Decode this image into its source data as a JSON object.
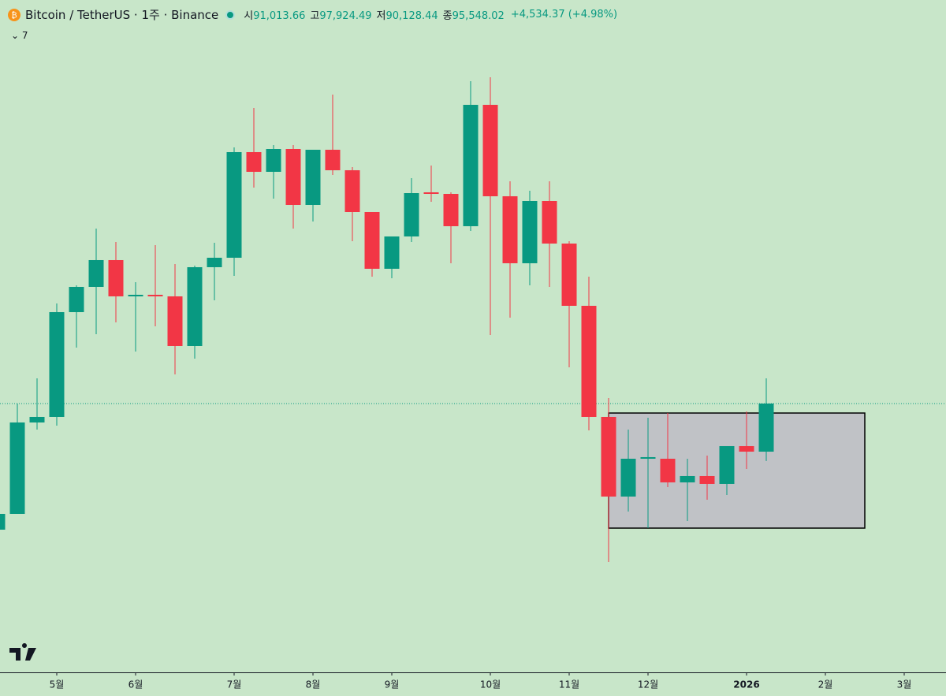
{
  "chart_data": {
    "type": "candlestick",
    "header": {
      "symbol": "Bitcoin / TetherUS · 1주 · Binance",
      "fields": [
        {
          "label": "시",
          "text": "91,013.66"
        },
        {
          "label": "고",
          "text": "97,924.49"
        },
        {
          "label": "저",
          "text": "90,128.44"
        },
        {
          "label": "종",
          "text": "95,548.02"
        }
      ],
      "change": "+4,534.37 (+4.98%)",
      "indicators": "7"
    },
    "x": [
      0,
      1,
      2,
      3,
      4,
      5,
      6,
      7,
      8,
      9,
      10,
      11,
      12,
      13,
      14,
      15,
      16,
      17,
      18,
      19,
      20,
      21,
      22,
      23,
      24,
      25,
      26,
      27,
      28,
      29,
      30,
      31,
      32,
      33,
      34,
      35,
      36,
      37,
      38,
      39
    ],
    "open": [
      83660,
      85146,
      93765,
      94285,
      104167,
      106545,
      109071,
      105653,
      105802,
      105653,
      100972,
      108402,
      109294,
      119250,
      117393,
      119547,
      114272,
      119473,
      117541,
      113603,
      108254,
      111300,
      115461,
      115312,
      112266,
      123708,
      115089,
      108774,
      114643,
      110631,
      104762,
      94285,
      86781,
      90347,
      90347,
      88118,
      88713,
      87970,
      91536,
      91013.66
    ],
    "high": [
      85295,
      95548,
      97926,
      104984,
      106693,
      112043,
      110780,
      106991,
      110483,
      108699,
      108551,
      110706,
      119696,
      123411,
      119919,
      119919,
      119473,
      124674,
      117838,
      113603,
      111300,
      116798,
      117987,
      115461,
      125937,
      126309,
      116501,
      115609,
      116501,
      110854,
      107511,
      96068,
      93096,
      94211,
      94657,
      90347,
      90645,
      91536,
      94805,
      97924.49
    ],
    "low": [
      83512,
      85146,
      93096,
      93468,
      100824,
      102087,
      103201,
      100452,
      102830,
      98297,
      99783,
      105282,
      107585,
      115907,
      114866,
      112043,
      112712,
      117095,
      110854,
      107511,
      107362,
      110780,
      114569,
      108774,
      111820,
      102012,
      103647,
      106693,
      106545,
      98966,
      93022,
      80614,
      85369,
      83809,
      87673,
      84478,
      86484,
      86930,
      89381,
      90128.44
    ],
    "close": [
      85146,
      93765,
      94285,
      104167,
      106545,
      109071,
      105653,
      105802,
      105653,
      100972,
      108402,
      109294,
      119250,
      117393,
      119547,
      114272,
      119473,
      117541,
      113603,
      108254,
      111300,
      115386,
      115312,
      112266,
      123708,
      115089,
      108774,
      114643,
      110631,
      104762,
      94285,
      86781,
      90347,
      90496,
      88118,
      88713,
      87970,
      91536,
      91016,
      95548.02
    ],
    "up_color": "#089981",
    "down_color": "#f23645",
    "xlim": [
      0.12,
      48.12
    ],
    "xticks": [
      {
        "value": 3,
        "label": "5월"
      },
      {
        "value": 7,
        "label": "6월"
      },
      {
        "value": 12,
        "label": "7월"
      },
      {
        "value": 16,
        "label": "8월"
      },
      {
        "value": 20,
        "label": "9월"
      },
      {
        "value": 25,
        "label": "10월"
      },
      {
        "value": 29,
        "label": "11월"
      },
      {
        "value": 33,
        "label": "12월"
      },
      {
        "value": 38,
        "label": "2026"
      },
      {
        "value": 42,
        "label": "2월"
      },
      {
        "value": 46,
        "label": "3월"
      }
    ],
    "ylim": [
      70210,
      133590
    ]
  }
}
